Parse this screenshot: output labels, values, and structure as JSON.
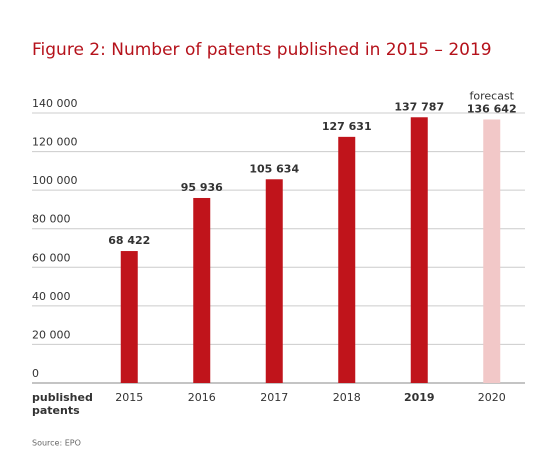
{
  "chart_data": {
    "type": "bar",
    "title": "Figure 2: Number of patents published in 2015 – 2019",
    "x_label": [
      "published",
      "patents"
    ],
    "categories": [
      "2015",
      "2016",
      "2017",
      "2018",
      "2019",
      "2020"
    ],
    "highlight": "2019",
    "values": [
      68422,
      95936,
      105634,
      127631,
      137787,
      136642
    ],
    "value_labels": [
      "68 422",
      "95 936",
      "105 634",
      "127 631",
      "137 787",
      "136 642"
    ],
    "colors": [
      "#c0141b",
      "#c0141b",
      "#c0141b",
      "#c0141b",
      "#c0141b",
      "#f2c8c8"
    ],
    "annotations": [
      {
        "text": "forecast",
        "category": "2020"
      }
    ],
    "ylim": [
      0,
      140000
    ],
    "yticks": [
      0,
      {
        "value": 20000,
        "label": "20 000"
      },
      {
        "value": 40000,
        "label": "40 000"
      },
      {
        "value": 60000,
        "label": "60 000"
      },
      {
        "value": 80000,
        "label": "80 000"
      },
      {
        "value": 100000,
        "label": "100 000"
      },
      {
        "value": 120000,
        "label": "120 000"
      },
      {
        "value": 140000,
        "label": "140 000"
      }
    ],
    "grid": true,
    "source": "Source: EPO"
  }
}
